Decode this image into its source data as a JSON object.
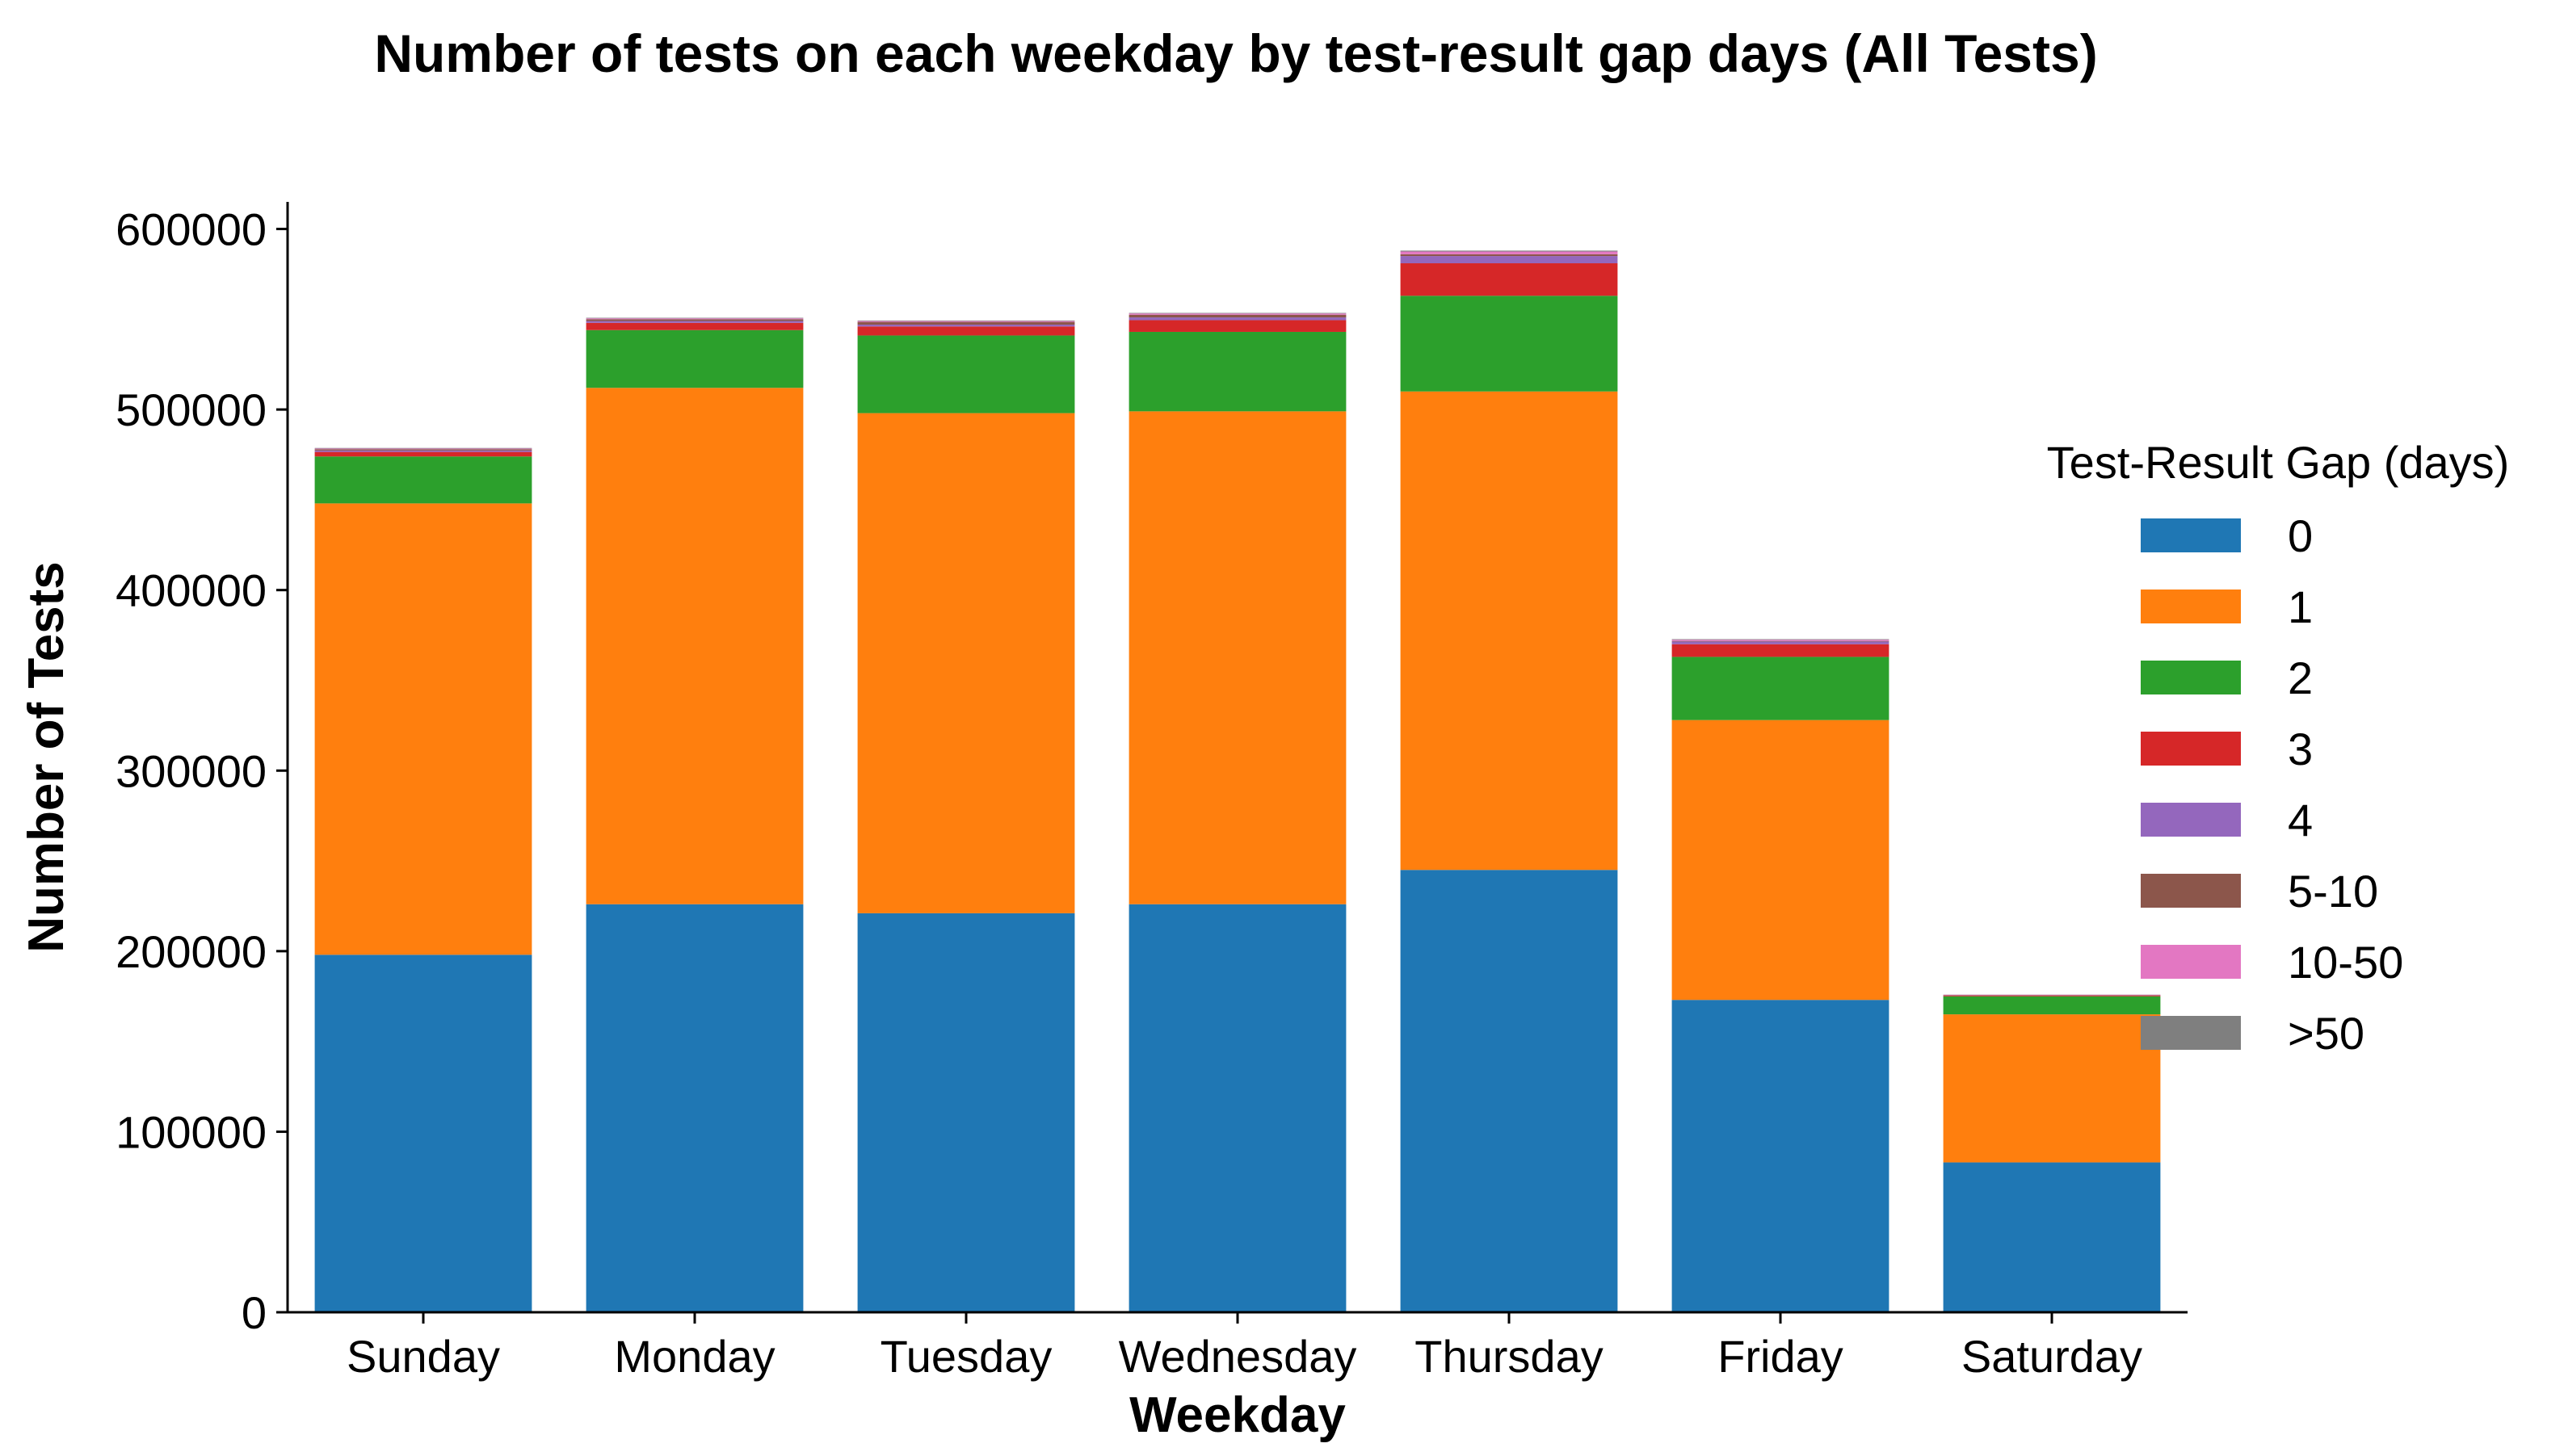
{
  "chart_data": {
    "type": "bar",
    "stacked": true,
    "title": "Number of tests on each weekday by test-result gap days (All Tests)",
    "xlabel": "Weekday",
    "ylabel": "Number of Tests",
    "ylim": [
      0,
      615000
    ],
    "yticks": [
      0,
      100000,
      200000,
      300000,
      400000,
      500000,
      600000
    ],
    "ytick_labels": [
      "0",
      "100000",
      "200000",
      "300000",
      "400000",
      "500000",
      "600000"
    ],
    "grid": false,
    "legend_position": "right",
    "legend_title": "Test-Result Gap (days)",
    "categories": [
      "Sunday",
      "Monday",
      "Tuesday",
      "Wednesday",
      "Thursday",
      "Friday",
      "Saturday"
    ],
    "series": [
      {
        "name": "0",
        "color": "#1f77b4",
        "values": [
          198000,
          226000,
          221000,
          226000,
          245000,
          173000,
          83000
        ]
      },
      {
        "name": "1",
        "color": "#ff7f0e",
        "values": [
          250000,
          286000,
          277000,
          273000,
          265000,
          155000,
          82000
        ]
      },
      {
        "name": "2",
        "color": "#2ca02c",
        "values": [
          26000,
          32000,
          43000,
          44000,
          53000,
          35000,
          10000
        ]
      },
      {
        "name": "3",
        "color": "#d62728",
        "values": [
          2500,
          4000,
          5000,
          6500,
          18000,
          7000,
          500
        ]
      },
      {
        "name": "4",
        "color": "#9467bd",
        "values": [
          800,
          1000,
          1000,
          1500,
          4000,
          1500,
          200
        ]
      },
      {
        "name": "5-10",
        "color": "#8c564b",
        "values": [
          700,
          1000,
          1500,
          1500,
          1000,
          300,
          100
        ]
      },
      {
        "name": "10-50",
        "color": "#e377c2",
        "values": [
          400,
          500,
          500,
          700,
          1500,
          700,
          100
        ]
      },
      {
        "name": ">50",
        "color": "#7f7f7f",
        "values": [
          300,
          300,
          300,
          300,
          500,
          300,
          50
        ]
      }
    ]
  }
}
